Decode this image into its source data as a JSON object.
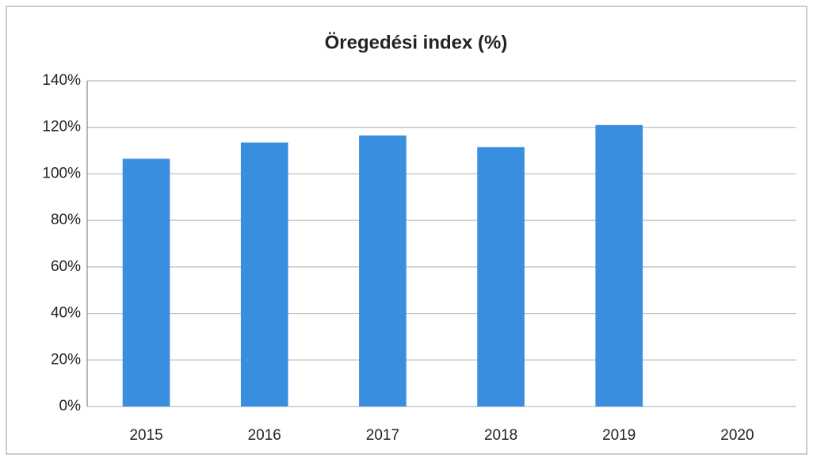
{
  "chart_data": {
    "type": "bar",
    "title": "Öregedési index (%)",
    "categories": [
      "2015",
      "2016",
      "2017",
      "2018",
      "2019",
      "2020"
    ],
    "values": [
      106.5,
      113.5,
      116.5,
      111.5,
      121,
      null
    ],
    "color": "#3a8ee0",
    "ylim": [
      0,
      140
    ],
    "yticks": [
      {
        "value": 0,
        "label": "0%"
      },
      {
        "value": 20,
        "label": "20%"
      },
      {
        "value": 40,
        "label": "40%"
      },
      {
        "value": 60,
        "label": "60%"
      },
      {
        "value": 80,
        "label": "80%"
      },
      {
        "value": 100,
        "label": "100%"
      },
      {
        "value": 120,
        "label": "120%"
      },
      {
        "value": 140,
        "label": "140%"
      }
    ],
    "grid": true
  }
}
